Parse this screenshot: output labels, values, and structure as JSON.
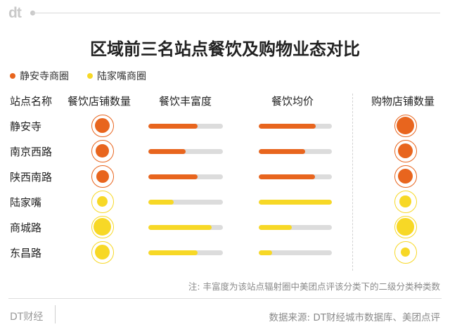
{
  "header": {
    "logo": "dt"
  },
  "title": "区域前三名站点餐饮及购物业态对比",
  "colors": {
    "jingan": "#e8651e",
    "lujiazui": "#f7d826",
    "track": "#dcdcdc"
  },
  "legend": [
    {
      "label": "静安寺商圈",
      "color": "#e8651e"
    },
    {
      "label": "陆家嘴商圈",
      "color": "#f7d826"
    }
  ],
  "columns": {
    "station": "站点名称",
    "dining_count": "餐饮店铺数量",
    "dining_richness": "餐饮丰富度",
    "avg_price": "餐饮均价",
    "shopping_count": "购物店铺数量"
  },
  "chart_data": {
    "type": "table",
    "note": "values estimated from bar fill fraction and circle size (relative scale)",
    "rows": [
      {
        "station": "静安寺",
        "area": "jingan",
        "dining_count": 0.86,
        "dining_richness": 0.66,
        "avg_price": 0.78,
        "shopping_count": 1.0
      },
      {
        "station": "南京西路",
        "area": "jingan",
        "dining_count": 0.78,
        "dining_richness": 0.5,
        "avg_price": 0.63,
        "shopping_count": 0.86
      },
      {
        "station": "陕西南路",
        "area": "jingan",
        "dining_count": 0.72,
        "dining_richness": 0.66,
        "avg_price": 0.77,
        "shopping_count": 0.84
      },
      {
        "station": "陆家嘴",
        "area": "lujiazui",
        "dining_count": 0.62,
        "dining_richness": 0.34,
        "avg_price": 1.0,
        "shopping_count": 0.66
      },
      {
        "station": "商城路",
        "area": "lujiazui",
        "dining_count": 1.0,
        "dining_richness": 0.85,
        "avg_price": 0.45,
        "shopping_count": 0.98
      },
      {
        "station": "东昌路",
        "area": "lujiazui",
        "dining_count": 0.86,
        "dining_richness": 0.66,
        "avg_price": 0.18,
        "shopping_count": 0.55
      }
    ]
  },
  "note": "注: 丰富度为该站点辐射圈中美团点评该分类下的二级分类种类数",
  "footer": {
    "brand": "DT财经",
    "source": "数据来源: DT财经城市数据库、美团点评"
  }
}
